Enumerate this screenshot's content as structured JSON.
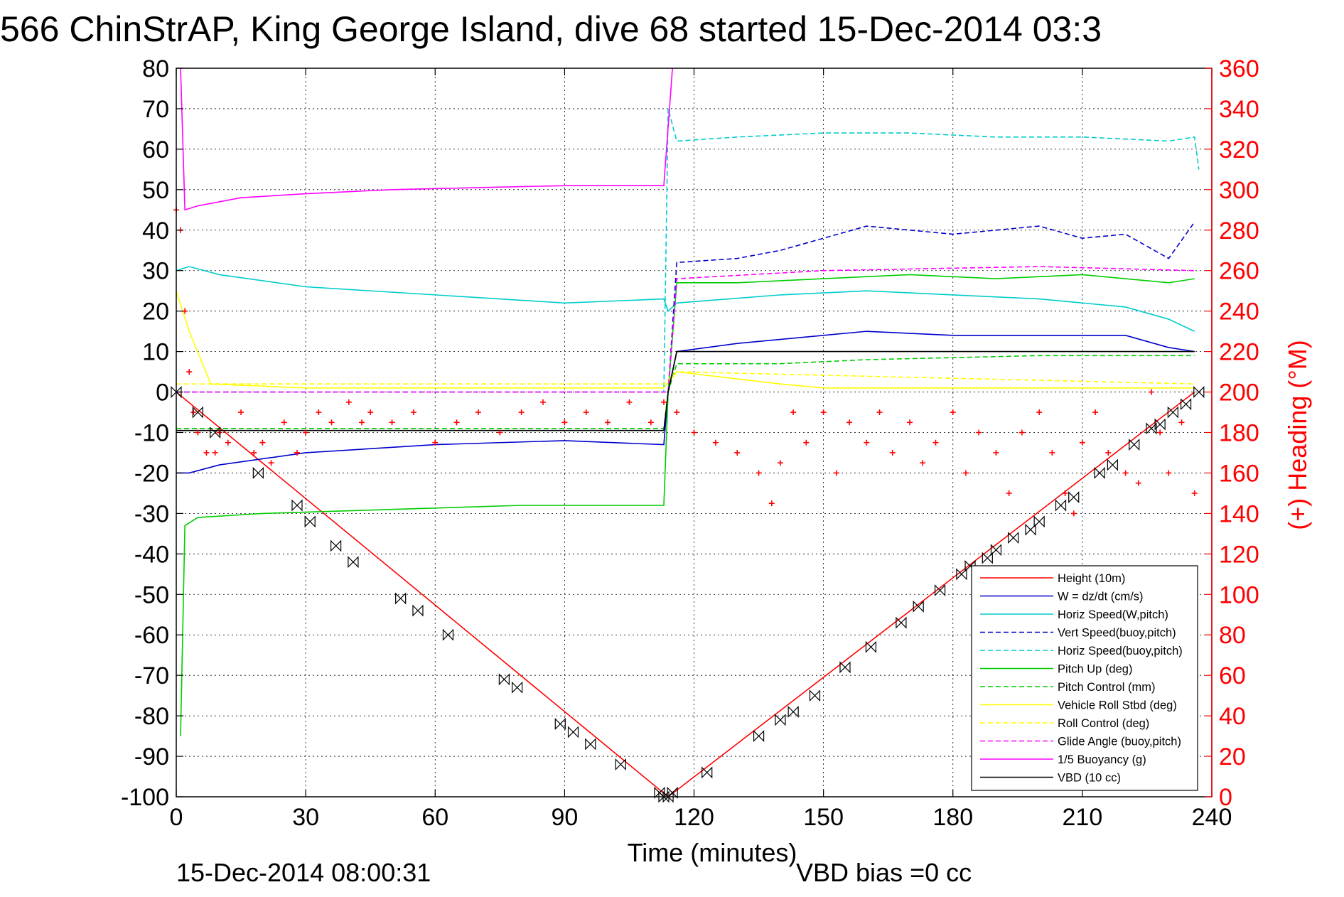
{
  "chart_data": {
    "type": "line",
    "title": "566 ChinStrAP, King George Island, dive 68 started 15-Dec-2014 03:3",
    "xlabel": "Time (minutes)",
    "ylabel_right": "(+) Heading (°M)",
    "xlim": [
      0,
      240
    ],
    "ylim": [
      -100,
      80
    ],
    "ylim_right": [
      0,
      360
    ],
    "x_ticks": [
      "0",
      "30",
      "60",
      "90",
      "120",
      "150",
      "180",
      "210",
      "240"
    ],
    "y_ticks": [
      "80",
      "70",
      "60",
      "50",
      "40",
      "30",
      "20",
      "10",
      "0",
      "-10",
      "-20",
      "-30",
      "-40",
      "-50",
      "-60",
      "-70",
      "-80",
      "-90",
      "-100"
    ],
    "y_right_ticks": [
      "360",
      "340",
      "320",
      "300",
      "280",
      "260",
      "240",
      "220",
      "200",
      "180",
      "160",
      "140",
      "120",
      "100",
      "80",
      "60",
      "40",
      "20",
      "0"
    ],
    "grid": true,
    "legend_position": "bottom-right",
    "footer_left": "15-Dec-2014 08:00:31",
    "footer_center": "VBD bias =0 cc",
    "series": [
      {
        "name": "Height (10m)",
        "color": "#ff0000",
        "style": "solid",
        "x": [
          0,
          114,
          236
        ],
        "y": [
          0,
          -100,
          0
        ]
      },
      {
        "name": "W = dz/dt (cm/s)",
        "color": "#0000cc",
        "style": "solid",
        "x": [
          0,
          3,
          10,
          30,
          60,
          90,
          113,
          114,
          116,
          130,
          150,
          160,
          180,
          200,
          220,
          230,
          236
        ],
        "y": [
          -20,
          -20,
          -18,
          -15,
          -13,
          -12,
          -13,
          0,
          10,
          12,
          14,
          15,
          14,
          14,
          14,
          11,
          10
        ]
      },
      {
        "name": "Horiz Speed(W,pitch)",
        "color": "#00cccc",
        "style": "solid",
        "x": [
          0,
          3,
          10,
          30,
          60,
          90,
          113,
          114,
          116,
          140,
          160,
          180,
          200,
          220,
          230,
          236
        ],
        "y": [
          30,
          31,
          29,
          26,
          24,
          22,
          23,
          20,
          22,
          24,
          25,
          24,
          23,
          21,
          18,
          15
        ]
      },
      {
        "name": "Vert Speed(buoy,pitch)",
        "color": "#0000cc",
        "style": "dashed",
        "x": [
          114,
          116,
          130,
          140,
          150,
          160,
          170,
          180,
          190,
          200,
          210,
          220,
          230,
          236
        ],
        "y": [
          0,
          32,
          33,
          35,
          38,
          41,
          40,
          39,
          40,
          41,
          38,
          39,
          33,
          42
        ]
      },
      {
        "name": "Horiz Speed(buoy,pitch)",
        "color": "#00cccc",
        "style": "dashed",
        "x": [
          0,
          113,
          114,
          116,
          130,
          150,
          170,
          190,
          210,
          230,
          236,
          237
        ],
        "y": [
          0,
          0,
          70,
          62,
          63,
          64,
          64,
          63,
          63,
          62,
          63,
          55
        ]
      },
      {
        "name": "Pitch Up (deg)",
        "color": "#00cc00",
        "style": "solid",
        "x": [
          1,
          2,
          5,
          20,
          50,
          80,
          113,
          114,
          116,
          130,
          150,
          170,
          190,
          210,
          230,
          236
        ],
        "y": [
          -85,
          -33,
          -31,
          -30,
          -29,
          -28,
          -28,
          0,
          27,
          27,
          28,
          29,
          28,
          29,
          27,
          28
        ]
      },
      {
        "name": "Pitch Control (mm)",
        "color": "#00cc00",
        "style": "dashed",
        "x": [
          0,
          113,
          114,
          116,
          140,
          160,
          200,
          236
        ],
        "y": [
          -9,
          -9,
          0,
          7,
          7,
          8,
          9,
          9
        ]
      },
      {
        "name": "Vehicle Roll Stbd (deg)",
        "color": "#ffff00",
        "style": "solid",
        "x": [
          0,
          3,
          8,
          30,
          60,
          90,
          113,
          116,
          140,
          150,
          180,
          210,
          236
        ],
        "y": [
          25,
          15,
          2,
          1,
          1,
          1,
          1,
          5,
          2,
          1,
          1,
          1,
          1
        ]
      },
      {
        "name": "Roll Control (deg)",
        "color": "#ffff00",
        "style": "dashed",
        "x": [
          0,
          113,
          116,
          236
        ],
        "y": [
          2,
          2,
          5,
          2
        ]
      },
      {
        "name": "Glide Angle (buoy,pitch)",
        "color": "#ff00ff",
        "style": "dashed",
        "x": [
          0,
          113,
          114,
          116,
          150,
          200,
          236
        ],
        "y": [
          0,
          0,
          0,
          28,
          30,
          31,
          30
        ]
      },
      {
        "name": "1/5 Buoyancy (g)",
        "color": "#ff00ff",
        "style": "solid",
        "x": [
          1,
          2,
          5,
          15,
          30,
          50,
          70,
          90,
          113,
          115
        ],
        "y": [
          80,
          45,
          46,
          48,
          49,
          50,
          50.5,
          51,
          51,
          80
        ]
      },
      {
        "name": "VBD (10 cc)",
        "color": "#000000",
        "style": "solid",
        "x": [
          0,
          113,
          114,
          116,
          140,
          236
        ],
        "y": [
          -9.5,
          -9.5,
          0,
          10,
          10,
          10
        ]
      }
    ],
    "heading": {
      "color": "#ff0000",
      "marker": "+",
      "x": [
        0,
        1,
        2,
        3,
        4,
        5,
        7,
        9,
        10,
        12,
        15,
        18,
        20,
        22,
        25,
        28,
        30,
        33,
        36,
        40,
        43,
        45,
        50,
        55,
        60,
        65,
        70,
        75,
        80,
        85,
        90,
        95,
        100,
        105,
        110,
        113,
        116,
        120,
        125,
        130,
        135,
        138,
        140,
        143,
        146,
        150,
        153,
        156,
        160,
        163,
        166,
        170,
        173,
        176,
        180,
        183,
        186,
        190,
        193,
        196,
        200,
        203,
        206,
        208,
        210,
        213,
        216,
        220,
        223,
        226,
        228,
        230,
        233,
        236
      ],
      "y": [
        290,
        280,
        240,
        210,
        190,
        180,
        170,
        170,
        180,
        175,
        190,
        170,
        175,
        165,
        185,
        170,
        180,
        190,
        185,
        195,
        185,
        190,
        185,
        190,
        175,
        185,
        190,
        180,
        190,
        195,
        185,
        190,
        185,
        195,
        185,
        195,
        190,
        180,
        175,
        170,
        160,
        145,
        165,
        190,
        175,
        190,
        160,
        185,
        175,
        190,
        170,
        185,
        165,
        175,
        190,
        160,
        180,
        170,
        150,
        180,
        190,
        170,
        150,
        140,
        175,
        190,
        170,
        160,
        155,
        200,
        180,
        160,
        185,
        150
      ]
    },
    "glider_markers": {
      "color": "#000000",
      "x": [
        0,
        5,
        9,
        19,
        28,
        31,
        37,
        41,
        52,
        56,
        63,
        76,
        79,
        89,
        92,
        96,
        103,
        112,
        113,
        114,
        115,
        123,
        135,
        140,
        143,
        148,
        155,
        161,
        168,
        172,
        177,
        182,
        184,
        188,
        190,
        194,
        198,
        200,
        205,
        208,
        214,
        217,
        222,
        226,
        228,
        231,
        234,
        237
      ],
      "y": [
        0,
        -5,
        -10,
        -20,
        -28,
        -32,
        -38,
        -42,
        -51,
        -54,
        -60,
        -71,
        -73,
        -82,
        -84,
        -87,
        -92,
        -99,
        -100,
        -100,
        -99,
        -94,
        -85,
        -81,
        -79,
        -75,
        -68,
        -63,
        -57,
        -53,
        -49,
        -45,
        -43,
        -41,
        -39,
        -36,
        -34,
        -32,
        -28,
        -26,
        -20,
        -18,
        -13,
        -9,
        -8,
        -5,
        -3,
        0
      ]
    }
  }
}
